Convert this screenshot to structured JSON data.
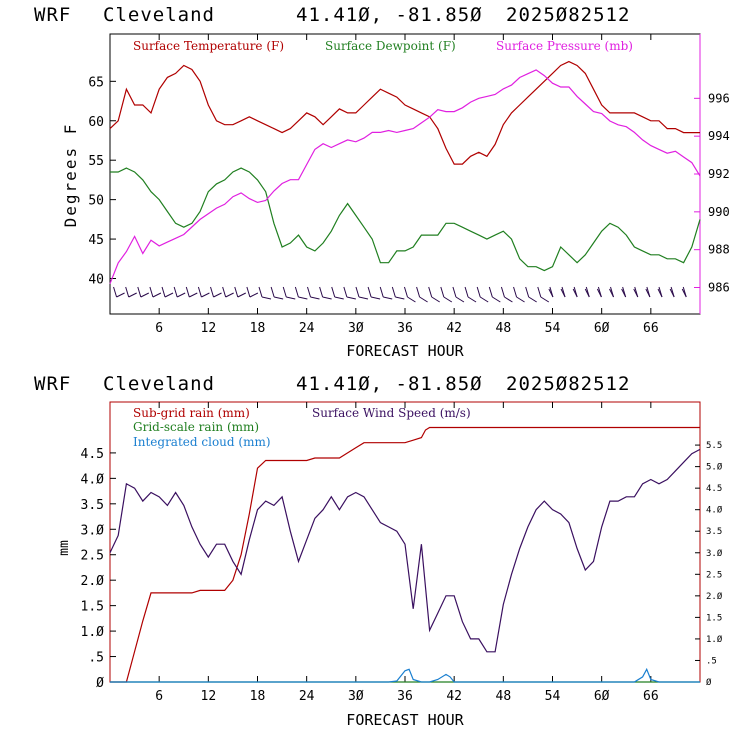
{
  "chart_data": [
    {
      "type": "line",
      "header": {
        "model": "WRF",
        "location": "Cleveland",
        "coords": "41.41Ø, -81.85Ø",
        "run": "2025Ø82512"
      },
      "xlabel": "FORECAST HOUR",
      "ylabel": "Degrees F",
      "xlim": [
        0,
        72
      ],
      "ylim": [
        35.5,
        71
      ],
      "y2lim": [
        984.6,
        999.4
      ],
      "x_ticks": [
        6,
        12,
        18,
        24,
        30,
        36,
        42,
        48,
        54,
        60,
        66
      ],
      "x_tick_labels": [
        "6",
        "12",
        "18",
        "24",
        "3Ø",
        "36",
        "42",
        "48",
        "54",
        "6Ø",
        "66"
      ],
      "y_ticks": [
        40,
        45,
        50,
        55,
        60,
        65
      ],
      "y2_ticks": [
        986,
        988,
        990,
        992,
        994,
        996
      ],
      "series": [
        {
          "name": "Surface Temperature (F)",
          "color": "#b00000",
          "axis": "left",
          "x": [
            0,
            1,
            2,
            3,
            4,
            5,
            6,
            7,
            8,
            9,
            10,
            11,
            12,
            13,
            14,
            15,
            16,
            17,
            18,
            19,
            20,
            21,
            22,
            23,
            24,
            25,
            26,
            27,
            28,
            29,
            30,
            31,
            32,
            33,
            34,
            35,
            36,
            37,
            38,
            39,
            40,
            41,
            42,
            43,
            44,
            45,
            46,
            47,
            48,
            49,
            50,
            51,
            52,
            53,
            54,
            55,
            56,
            57,
            58,
            59,
            60,
            61,
            62,
            63,
            64,
            65,
            66,
            67,
            68,
            69,
            70,
            71,
            72
          ],
          "values": [
            59,
            60,
            64,
            62,
            62,
            61,
            64,
            65.5,
            66,
            67,
            66.5,
            65,
            62,
            60,
            59.5,
            59.5,
            60,
            60.5,
            60,
            59.5,
            59,
            58.5,
            59,
            60,
            61,
            60.5,
            59.5,
            60.5,
            61.5,
            61,
            61,
            62,
            63,
            64,
            63.5,
            63,
            62,
            61.5,
            61,
            60.5,
            59,
            56.5,
            54.5,
            54.5,
            55.5,
            56,
            55.5,
            57,
            59.5,
            61,
            62,
            63,
            64,
            65,
            66,
            67,
            67.5,
            67,
            66,
            64,
            62,
            61,
            61,
            61,
            61,
            60.5,
            60,
            60,
            59,
            59,
            58.5,
            58.5,
            58.5
          ]
        },
        {
          "name": "Surface Dewpoint (F)",
          "color": "#207f20",
          "axis": "left",
          "x": [
            0,
            1,
            2,
            3,
            4,
            5,
            6,
            7,
            8,
            9,
            10,
            11,
            12,
            13,
            14,
            15,
            16,
            17,
            18,
            19,
            20,
            21,
            22,
            23,
            24,
            25,
            26,
            27,
            28,
            29,
            30,
            31,
            32,
            33,
            34,
            35,
            36,
            37,
            38,
            39,
            40,
            41,
            42,
            43,
            44,
            45,
            46,
            47,
            48,
            49,
            50,
            51,
            52,
            53,
            54,
            55,
            56,
            57,
            58,
            59,
            60,
            61,
            62,
            63,
            64,
            65,
            66,
            67,
            68,
            69,
            70,
            71,
            72
          ],
          "values": [
            53.5,
            53.5,
            54,
            53.5,
            52.5,
            51,
            50,
            48.5,
            47,
            46.5,
            47,
            48.5,
            51,
            52,
            52.5,
            53.5,
            54,
            53.5,
            52.5,
            51,
            47,
            44,
            44.5,
            45.5,
            44,
            43.5,
            44.5,
            46,
            48,
            49.5,
            48,
            46.5,
            45,
            42,
            42,
            43.5,
            43.5,
            44,
            45.5,
            45.5,
            45.5,
            47,
            47,
            46.5,
            46,
            45.5,
            45,
            45.5,
            46,
            45,
            42.5,
            41.5,
            41.5,
            41,
            41.5,
            44,
            43,
            42,
            43,
            44.5,
            46,
            47,
            46.5,
            45.5,
            44,
            43.5,
            43,
            43,
            42.5,
            42.5,
            42,
            44,
            47.5
          ]
        },
        {
          "name": "Surface Pressure (mb)",
          "color": "#e020e0",
          "axis": "right",
          "x": [
            0,
            1,
            2,
            3,
            4,
            5,
            6,
            7,
            8,
            9,
            10,
            11,
            12,
            13,
            14,
            15,
            16,
            17,
            18,
            19,
            20,
            21,
            22,
            23,
            24,
            25,
            26,
            27,
            28,
            29,
            30,
            31,
            32,
            33,
            34,
            35,
            36,
            37,
            38,
            39,
            40,
            41,
            42,
            43,
            44,
            45,
            46,
            47,
            48,
            49,
            50,
            51,
            52,
            53,
            54,
            55,
            56,
            57,
            58,
            59,
            60,
            61,
            62,
            63,
            64,
            65,
            66,
            67,
            68,
            69,
            70,
            71,
            72
          ],
          "values": [
            986.2,
            987.3,
            987.9,
            988.7,
            987.8,
            988.5,
            988.2,
            988.4,
            988.6,
            988.8,
            989.2,
            989.6,
            989.9,
            990.2,
            990.4,
            990.8,
            991,
            990.7,
            990.5,
            990.6,
            991.1,
            991.5,
            991.7,
            991.7,
            992.5,
            993.3,
            993.6,
            993.4,
            993.6,
            993.8,
            993.7,
            993.9,
            994.2,
            994.2,
            994.3,
            994.2,
            994.3,
            994.4,
            994.7,
            995,
            995.4,
            995.3,
            995.3,
            995.5,
            995.8,
            996,
            996.1,
            996.2,
            996.5,
            996.7,
            997.1,
            997.3,
            997.5,
            997.2,
            996.8,
            996.6,
            996.6,
            996.1,
            995.7,
            995.3,
            995.2,
            994.8,
            994.6,
            994.5,
            994.2,
            993.8,
            993.5,
            993.3,
            993.1,
            993.2,
            992.9,
            992.6,
            991.9
          ]
        }
      ],
      "wind_barbs": {
        "count": 48,
        "color": "#2a0a4a"
      }
    },
    {
      "type": "line",
      "header": {
        "model": "WRF",
        "location": "Cleveland",
        "coords": "41.41Ø, -81.85Ø",
        "run": "2025Ø82512"
      },
      "xlabel": "FORECAST HOUR",
      "ylabel": "mm",
      "xlim": [
        0,
        72
      ],
      "ylim": [
        0,
        5.5
      ],
      "y2lim": [
        0,
        6.5
      ],
      "x_ticks": [
        6,
        12,
        18,
        24,
        30,
        36,
        42,
        48,
        54,
        60,
        66
      ],
      "x_tick_labels": [
        "6",
        "12",
        "18",
        "24",
        "3Ø",
        "36",
        "42",
        "48",
        "54",
        "6Ø",
        "66"
      ],
      "y_ticks": [
        0,
        0.5,
        1.0,
        1.5,
        2.0,
        2.5,
        3.0,
        3.5,
        4.0,
        4.5
      ],
      "y_tick_labels": [
        "Ø",
        ".5",
        "1.Ø",
        "1.5",
        "2.Ø",
        "2.5",
        "3.Ø",
        "3.5",
        "4.Ø",
        "4.5"
      ],
      "y2_ticks": [
        0,
        0.5,
        1.0,
        1.5,
        2.0,
        2.5,
        3.0,
        3.5,
        4.0,
        4.5,
        5.0,
        5.5
      ],
      "y2_tick_labels": [
        "Ø",
        ".5",
        "1.Ø",
        "1.5",
        "2.Ø",
        "2.5",
        "3.Ø",
        "3.5",
        "4.Ø",
        "4.5",
        "5.Ø",
        "5.5"
      ],
      "series": [
        {
          "name": "Sub-grid rain (mm)",
          "color": "#b00000",
          "axis": "left",
          "x": [
            0,
            2,
            3,
            4,
            5,
            6,
            7,
            8,
            9,
            10,
            11,
            12,
            13,
            14,
            15,
            16,
            17,
            18,
            19,
            20,
            21,
            22,
            23,
            24,
            25,
            26,
            27,
            28,
            29,
            30,
            31,
            32,
            33,
            34,
            35,
            36,
            37,
            38,
            38.5,
            39,
            40,
            45,
            50,
            55,
            60,
            65,
            70,
            72
          ],
          "values": [
            0,
            0,
            0.6,
            1.2,
            1.75,
            1.75,
            1.75,
            1.75,
            1.75,
            1.75,
            1.8,
            1.8,
            1.8,
            1.8,
            2.0,
            2.5,
            3.3,
            4.2,
            4.35,
            4.35,
            4.35,
            4.35,
            4.35,
            4.35,
            4.4,
            4.4,
            4.4,
            4.4,
            4.5,
            4.6,
            4.7,
            4.7,
            4.7,
            4.7,
            4.7,
            4.7,
            4.75,
            4.8,
            4.95,
            5.0,
            5.0,
            5.0,
            5.0,
            5.0,
            5.0,
            5.0,
            5.0,
            5.0
          ]
        },
        {
          "name": "Grid-scale rain (mm)",
          "color": "#207f20",
          "axis": "left",
          "x": [
            0,
            72
          ],
          "values": [
            0,
            0
          ]
        },
        {
          "name": "Integrated cloud (mm)",
          "color": "#1a7fd0",
          "axis": "left",
          "x": [
            0,
            34,
            35,
            36,
            36.5,
            37,
            38,
            39,
            40,
            41,
            41.5,
            42,
            43,
            64,
            65,
            65.5,
            66,
            67,
            72
          ],
          "values": [
            0,
            0,
            0.02,
            0.22,
            0.25,
            0.05,
            0,
            0,
            0.05,
            0.15,
            0.1,
            0,
            0,
            0,
            0.1,
            0.25,
            0.05,
            0,
            0
          ]
        },
        {
          "name": "Surface Wind Speed (m/s)",
          "color": "#3a1060",
          "axis": "right",
          "x": [
            0,
            1,
            2,
            3,
            4,
            5,
            6,
            7,
            8,
            9,
            10,
            11,
            12,
            13,
            14,
            15,
            16,
            17,
            18,
            19,
            20,
            21,
            22,
            23,
            24,
            25,
            26,
            27,
            28,
            29,
            30,
            31,
            32,
            33,
            34,
            35,
            36,
            37,
            38,
            39,
            40,
            41,
            42,
            43,
            44,
            45,
            46,
            47,
            48,
            49,
            50,
            51,
            52,
            53,
            54,
            55,
            56,
            57,
            58,
            59,
            60,
            61,
            62,
            63,
            64,
            65,
            66,
            67,
            68,
            69,
            70,
            71,
            72
          ],
          "values": [
            3.0,
            3.4,
            4.6,
            4.5,
            4.2,
            4.4,
            4.3,
            4.1,
            4.4,
            4.1,
            3.6,
            3.2,
            2.9,
            3.2,
            3.2,
            2.8,
            2.5,
            3.3,
            4.0,
            4.2,
            4.1,
            4.3,
            3.5,
            2.8,
            3.3,
            3.8,
            4.0,
            4.3,
            4.0,
            4.3,
            4.4,
            4.3,
            4.0,
            3.7,
            3.6,
            3.5,
            3.2,
            1.7,
            3.2,
            1.2,
            1.6,
            2.0,
            2.0,
            1.4,
            1.0,
            1.0,
            0.7,
            0.7,
            1.8,
            2.5,
            3.1,
            3.6,
            4.0,
            4.2,
            4.0,
            3.9,
            3.7,
            3.1,
            2.6,
            2.8,
            3.6,
            4.2,
            4.2,
            4.3,
            4.3,
            4.6,
            4.7,
            4.6,
            4.7,
            4.9,
            5.1,
            5.3,
            5.4
          ]
        }
      ]
    }
  ],
  "legend": {
    "top": [
      "Surface Temperature (F)",
      "Surface Dewpoint (F)",
      "Surface Pressure (mb)"
    ],
    "bottom": [
      "Sub-grid rain (mm)",
      "Surface Wind Speed (m/s)",
      "Grid-scale rain (mm)",
      "Integrated cloud (mm)"
    ]
  }
}
